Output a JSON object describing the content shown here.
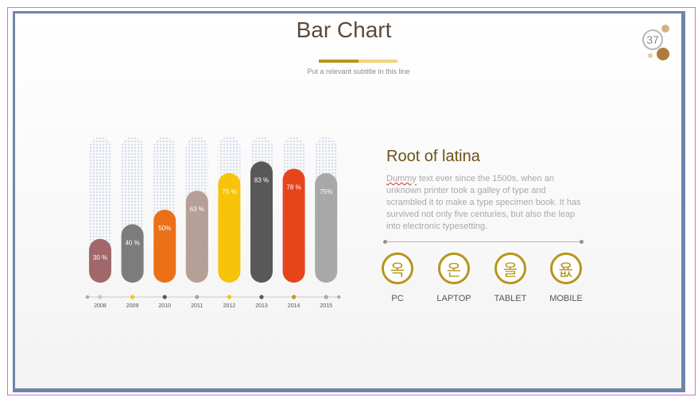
{
  "slide": {
    "title": "Bar Chart",
    "subtitle": "Put a relevant subtitle in this line",
    "page_number": "37",
    "accent_color": "#b8941e"
  },
  "side_panel": {
    "heading": "Root of latina",
    "body_first_word": "Dummy",
    "body_rest": " text ever since the 1500s, when an unknown printer took a galley of type and scrambled it to make a type specimen book. It has survived not only five centuries, but also the leap into electronic typesetting."
  },
  "devices": [
    {
      "label": "PC",
      "glyph": "옥",
      "icon": "pc-icon"
    },
    {
      "label": "LAPTOP",
      "glyph": "온",
      "icon": "laptop-icon"
    },
    {
      "label": "TABLET",
      "glyph": "올",
      "icon": "tablet-icon"
    },
    {
      "label": "MOBILE",
      "glyph": "욦",
      "icon": "mobile-icon"
    }
  ],
  "chart_data": {
    "type": "bar",
    "categories": [
      "2008",
      "2009",
      "2010",
      "2011",
      "2012",
      "2013",
      "2014",
      "2015"
    ],
    "values": [
      30,
      40,
      50,
      63,
      75,
      83,
      78,
      75
    ],
    "value_labels": [
      "30 %",
      "40 %",
      "50%",
      "63 %",
      "75 %",
      "83 %",
      "78 %",
      "75%"
    ],
    "colors": [
      "#a0686a",
      "#7c7c7c",
      "#ec7018",
      "#b69f97",
      "#f8c40a",
      "#585858",
      "#e6451c",
      "#a8a8a8"
    ],
    "timeline_dot_colors": [
      "#c8c8c8",
      "#f8c40a",
      "#585858",
      "#b69f97",
      "#f8c40a",
      "#585858",
      "#c7951c",
      "#a8a8a8"
    ],
    "ylim": [
      0,
      100
    ],
    "grid": false,
    "legend": "none"
  }
}
